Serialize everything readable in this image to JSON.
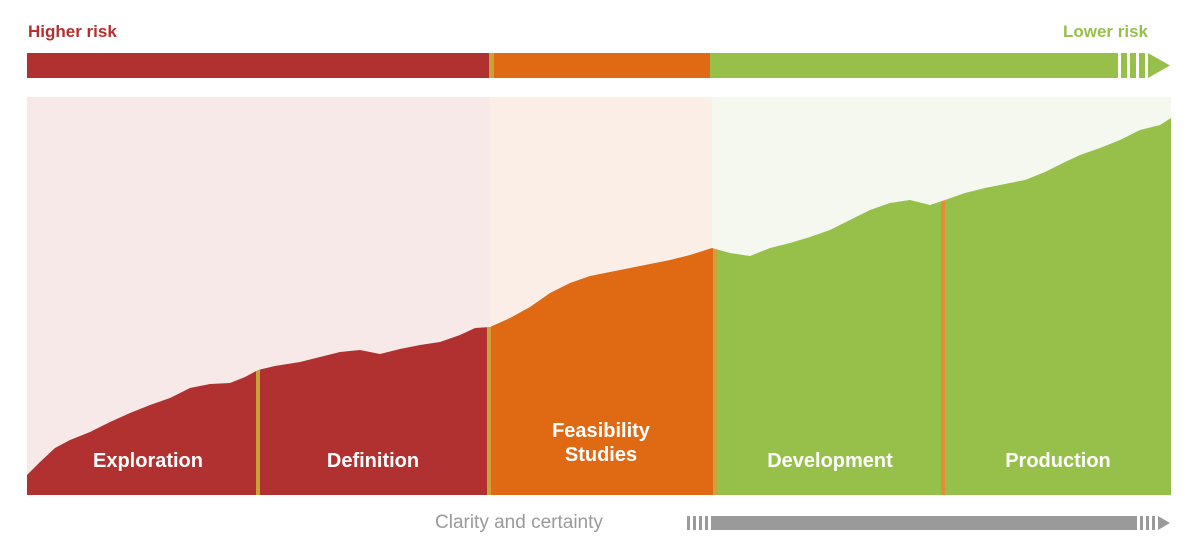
{
  "risk_scale": {
    "higher_label": "Higher risk",
    "lower_label": "Lower risk"
  },
  "stages": [
    {
      "name": "Exploration",
      "color": "#b0312f"
    },
    {
      "name": "Definition",
      "color": "#b0312f"
    },
    {
      "name": "Feasibility Studies",
      "color": "#e06a14"
    },
    {
      "name": "Development",
      "color": "#97c04b"
    },
    {
      "name": "Production",
      "color": "#97c04b"
    }
  ],
  "colors": {
    "high_risk": "#b0312f",
    "medium_risk": "#e06a14",
    "low_risk": "#97c04b",
    "divider": "#c9a23a",
    "bg_high": "#f8e9e9",
    "bg_medium": "#fbeee6",
    "bg_low": "#f4f8ee",
    "clarity_arrow": "#9a9a9a"
  },
  "clarity": {
    "label": "Clarity and certainty"
  }
}
